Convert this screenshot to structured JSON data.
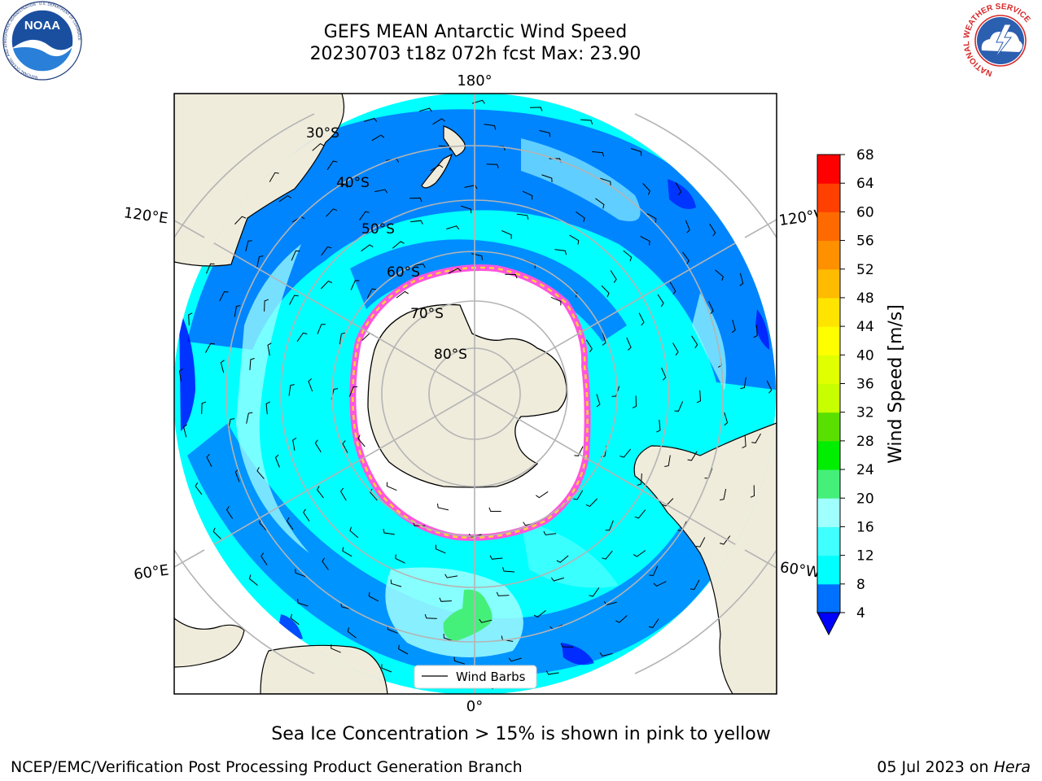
{
  "header": {
    "title_line1": "GEFS MEAN Antarctic Wind Speed",
    "title_line2": "20230703 t18z 072h fcst   Max: 23.90"
  },
  "logos": {
    "noaa_text": "NOAA",
    "noaa_ring": "NATIONAL OCEANIC AND ATMOSPHERIC ADMINISTRATION · U.S. DEPARTMENT OF COMMERCE",
    "nws_ring": "NATIONAL WEATHER SERVICE"
  },
  "map": {
    "projection": "south-polar-stereographic",
    "longitude_labels": [
      "180°",
      "120°E",
      "120°W",
      "60°E",
      "60°W",
      "0°"
    ],
    "latitude_labels": [
      "30°S",
      "40°S",
      "50°S",
      "60°S",
      "70°S",
      "80°S"
    ],
    "legend_label": "Wind Barbs",
    "colors": {
      "land": "#efecdc",
      "ice_edge": "#ff55dd",
      "ice_edge_yellow": "#ffd23a",
      "grid": "#b4b4b4"
    }
  },
  "colorbar": {
    "label": "Wind Speed [m/s]",
    "ticks": [
      "4",
      "8",
      "12",
      "16",
      "20",
      "24",
      "28",
      "32",
      "36",
      "40",
      "44",
      "48",
      "52",
      "56",
      "60",
      "64",
      "68"
    ],
    "colors": [
      "#0070ff",
      "#00ffff",
      "#40ffff",
      "#a0ffff",
      "#45f07a",
      "#00ee00",
      "#5ae000",
      "#c8ff00",
      "#e0ff00",
      "#ffff00",
      "#ffe400",
      "#ffbb00",
      "#ff9000",
      "#ff6a00",
      "#ff4000",
      "#ff0000"
    ],
    "under_color": "#0000ff"
  },
  "captions": {
    "ice_note": "Sea Ice Concentration > 15% is shown in pink to yellow",
    "footer_left": "NCEP/EMC/Verification Post Processing Product Generation Branch",
    "footer_date": "05 Jul 2023 on ",
    "footer_machine": "Hera"
  }
}
